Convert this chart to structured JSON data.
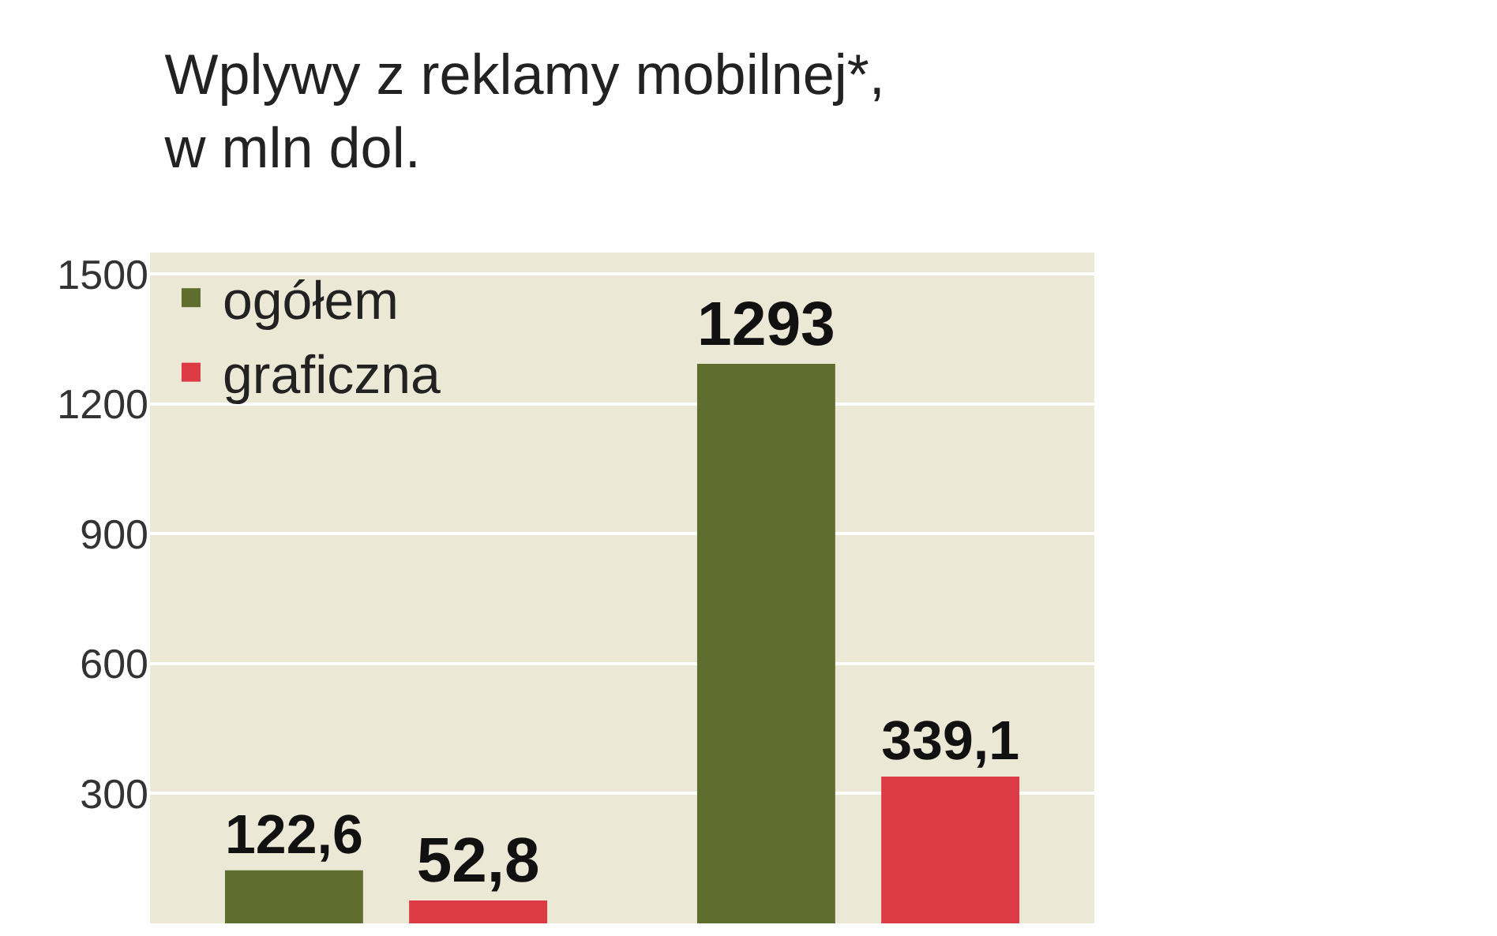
{
  "chart_data": {
    "type": "bar",
    "title": "Wplywy z reklamy mobilnej*,",
    "subtitle": "w mln dol.",
    "categories": [
      null,
      null
    ],
    "series": [
      {
        "name": "ogółem",
        "color": "#5f6d2e",
        "values": [
          122.6,
          1293
        ],
        "value_labels": [
          "122,6",
          "1293"
        ]
      },
      {
        "name": "graficzna",
        "color": "#dc3a44",
        "values": [
          52.8,
          339.1
        ],
        "value_labels": [
          "52,8",
          "339,1"
        ]
      }
    ],
    "ylim": [
      0,
      1550
    ],
    "yticks": [
      300,
      600,
      900,
      1200,
      1500
    ],
    "grid": "y",
    "legend": "top left"
  }
}
